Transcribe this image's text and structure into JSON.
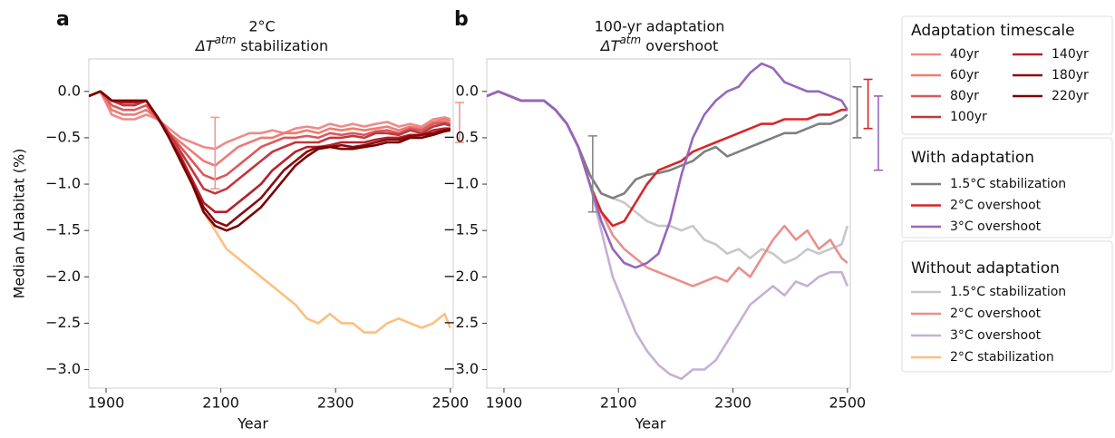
{
  "chart_data": [
    {
      "type": "line",
      "panel_label": "a",
      "title": "2°C",
      "subtitle": {
        "symbol": "ΔT",
        "superscript": "atm",
        "text": " stabilization"
      },
      "ylabel": "Median ΔHabitat (%)",
      "xlabel": "Year",
      "xlim": [
        1870,
        2505
      ],
      "ylim": [
        -3.2,
        0.35
      ],
      "xticks": [
        1900,
        2100,
        2300,
        2500
      ],
      "yticks": [
        {
          "value": 0,
          "label": "0.0"
        },
        {
          "value": -0.5,
          "label": "−0.5"
        },
        {
          "value": -1,
          "label": "−1.0"
        },
        {
          "value": -1.5,
          "label": "−1.5"
        },
        {
          "value": -2,
          "label": "−2.0"
        },
        {
          "value": -2.5,
          "label": "−2.5"
        },
        {
          "value": -3,
          "label": "−3.0"
        }
      ],
      "x": [
        1870,
        1890,
        1910,
        1930,
        1950,
        1970,
        1990,
        2010,
        2030,
        2050,
        2070,
        2090,
        2110,
        2130,
        2150,
        2170,
        2190,
        2210,
        2230,
        2250,
        2270,
        2290,
        2310,
        2330,
        2350,
        2370,
        2390,
        2410,
        2430,
        2450,
        2470,
        2490,
        2500
      ],
      "series_groups": [
        {
          "name": "Adaptation timescale",
          "series": [
            {
              "name": "40yr",
              "color": "#ef8a88",
              "values": [
                -0.05,
                0.0,
                -0.25,
                -0.3,
                -0.3,
                -0.25,
                -0.3,
                -0.4,
                -0.5,
                -0.55,
                -0.6,
                -0.62,
                -0.55,
                -0.5,
                -0.45,
                -0.45,
                -0.42,
                -0.45,
                -0.4,
                -0.38,
                -0.4,
                -0.35,
                -0.38,
                -0.35,
                -0.38,
                -0.35,
                -0.33,
                -0.38,
                -0.35,
                -0.38,
                -0.3,
                -0.28,
                -0.3
              ]
            },
            {
              "name": "60yr",
              "color": "#ee7b72",
              "values": [
                -0.05,
                0.0,
                -0.2,
                -0.25,
                -0.25,
                -0.2,
                -0.3,
                -0.45,
                -0.55,
                -0.65,
                -0.75,
                -0.8,
                -0.7,
                -0.6,
                -0.55,
                -0.5,
                -0.5,
                -0.45,
                -0.45,
                -0.42,
                -0.45,
                -0.4,
                -0.42,
                -0.4,
                -0.42,
                -0.4,
                -0.38,
                -0.42,
                -0.38,
                -0.4,
                -0.33,
                -0.3,
                -0.32
              ]
            },
            {
              "name": "80yr",
              "color": "#d9595e",
              "values": [
                -0.05,
                0.0,
                -0.15,
                -0.2,
                -0.2,
                -0.15,
                -0.3,
                -0.45,
                -0.6,
                -0.75,
                -0.9,
                -0.95,
                -0.9,
                -0.8,
                -0.7,
                -0.6,
                -0.55,
                -0.5,
                -0.5,
                -0.48,
                -0.5,
                -0.45,
                -0.47,
                -0.45,
                -0.47,
                -0.43,
                -0.42,
                -0.45,
                -0.4,
                -0.42,
                -0.35,
                -0.33,
                -0.35
              ]
            },
            {
              "name": "100yr",
              "color": "#c1373c",
              "values": [
                -0.05,
                0.0,
                -0.1,
                -0.15,
                -0.15,
                -0.1,
                -0.28,
                -0.45,
                -0.65,
                -0.85,
                -1.05,
                -1.1,
                -1.05,
                -0.95,
                -0.85,
                -0.75,
                -0.65,
                -0.6,
                -0.55,
                -0.55,
                -0.55,
                -0.5,
                -0.5,
                -0.48,
                -0.5,
                -0.45,
                -0.45,
                -0.47,
                -0.42,
                -0.45,
                -0.38,
                -0.35,
                -0.37
              ]
            },
            {
              "name": "140yr",
              "color": "#b4212a",
              "values": [
                -0.05,
                0.0,
                -0.1,
                -0.12,
                -0.12,
                -0.1,
                -0.28,
                -0.5,
                -0.7,
                -0.95,
                -1.2,
                -1.3,
                -1.3,
                -1.2,
                -1.1,
                -1.0,
                -0.85,
                -0.75,
                -0.65,
                -0.6,
                -0.6,
                -0.58,
                -0.55,
                -0.55,
                -0.55,
                -0.52,
                -0.5,
                -0.5,
                -0.47,
                -0.47,
                -0.42,
                -0.4,
                -0.4
              ]
            },
            {
              "name": "180yr",
              "color": "#8b0a0e",
              "values": [
                -0.05,
                0.0,
                -0.1,
                -0.1,
                -0.1,
                -0.1,
                -0.28,
                -0.5,
                -0.75,
                -1.0,
                -1.25,
                -1.4,
                -1.45,
                -1.35,
                -1.25,
                -1.15,
                -1.0,
                -0.85,
                -0.75,
                -0.65,
                -0.6,
                -0.6,
                -0.58,
                -0.6,
                -0.58,
                -0.55,
                -0.52,
                -0.52,
                -0.48,
                -0.47,
                -0.45,
                -0.42,
                -0.4
              ]
            },
            {
              "name": "220yr",
              "color": "#7a0000",
              "values": [
                -0.05,
                0.0,
                -0.1,
                -0.1,
                -0.1,
                -0.1,
                -0.28,
                -0.5,
                -0.75,
                -1.0,
                -1.3,
                -1.45,
                -1.5,
                -1.45,
                -1.35,
                -1.25,
                -1.1,
                -0.95,
                -0.8,
                -0.7,
                -0.62,
                -0.6,
                -0.62,
                -0.62,
                -0.6,
                -0.58,
                -0.55,
                -0.55,
                -0.5,
                -0.5,
                -0.47,
                -0.43,
                -0.42
              ]
            }
          ]
        },
        {
          "series": [
            {
              "name": "2°C stabilization",
              "color": "#fdbf80",
              "values": [
                -0.05,
                0.0,
                -0.1,
                -0.1,
                -0.1,
                -0.1,
                -0.28,
                -0.5,
                -0.75,
                -1.0,
                -1.3,
                -1.5,
                -1.7,
                -1.8,
                -1.9,
                -2.0,
                -2.1,
                -2.2,
                -2.3,
                -2.45,
                -2.5,
                -2.4,
                -2.5,
                -2.5,
                -2.6,
                -2.6,
                -2.5,
                -2.45,
                -2.5,
                -2.55,
                -2.5,
                -2.4,
                -2.55
              ]
            }
          ]
        }
      ],
      "range_bars": [
        {
          "x": 2090,
          "low": -1.05,
          "high": -0.28,
          "color": "#ef9a95"
        },
        {
          "x": 2516,
          "low": -0.55,
          "high": -0.12,
          "color": "#ef9a95"
        }
      ]
    },
    {
      "type": "line",
      "panel_label": "b",
      "title": "100-yr adaptation",
      "subtitle": {
        "symbol": "ΔT",
        "superscript": "atm",
        "text": " overshoot"
      },
      "xlabel": "Year",
      "xlim": [
        1870,
        2505
      ],
      "ylim": [
        -3.2,
        0.35
      ],
      "xticks": [
        1900,
        2100,
        2300,
        2500
      ],
      "yticks": [
        {
          "value": 0,
          "label": "0.0"
        },
        {
          "value": -0.5,
          "label": "−0.5"
        },
        {
          "value": -1,
          "label": "−1.0"
        },
        {
          "value": -1.5,
          "label": "−1.5"
        },
        {
          "value": -2,
          "label": "−2.0"
        },
        {
          "value": -2.5,
          "label": "−2.5"
        },
        {
          "value": -3,
          "label": "−3.0"
        }
      ],
      "x": [
        1870,
        1890,
        1910,
        1930,
        1950,
        1970,
        1990,
        2010,
        2030,
        2050,
        2070,
        2090,
        2110,
        2130,
        2150,
        2170,
        2190,
        2210,
        2230,
        2250,
        2270,
        2290,
        2310,
        2330,
        2350,
        2370,
        2390,
        2410,
        2430,
        2450,
        2470,
        2490,
        2500
      ],
      "series_groups": [
        {
          "name": "With adaptation",
          "series": [
            {
              "name": "1.5°C stabilization",
              "color": "#7f7f7f",
              "values": [
                -0.05,
                0.0,
                -0.05,
                -0.1,
                -0.1,
                -0.1,
                -0.2,
                -0.35,
                -0.6,
                -0.9,
                -1.1,
                -1.15,
                -1.1,
                -0.95,
                -0.9,
                -0.88,
                -0.85,
                -0.8,
                -0.75,
                -0.65,
                -0.6,
                -0.7,
                -0.65,
                -0.6,
                -0.55,
                -0.5,
                -0.45,
                -0.45,
                -0.4,
                -0.35,
                -0.35,
                -0.3,
                -0.25
              ]
            },
            {
              "name": "2°C overshoot",
              "color": "#d62728",
              "values": [
                -0.05,
                0.0,
                -0.05,
                -0.1,
                -0.1,
                -0.1,
                -0.2,
                -0.35,
                -0.6,
                -1.0,
                -1.3,
                -1.45,
                -1.4,
                -1.2,
                -1.0,
                -0.85,
                -0.8,
                -0.75,
                -0.65,
                -0.6,
                -0.55,
                -0.5,
                -0.45,
                -0.4,
                -0.35,
                -0.35,
                -0.3,
                -0.3,
                -0.3,
                -0.25,
                -0.25,
                -0.2,
                -0.2
              ]
            },
            {
              "name": "3°C overshoot",
              "color": "#9467bd",
              "values": [
                -0.05,
                0.0,
                -0.05,
                -0.1,
                -0.1,
                -0.1,
                -0.2,
                -0.35,
                -0.6,
                -1.0,
                -1.4,
                -1.7,
                -1.85,
                -1.9,
                -1.85,
                -1.75,
                -1.4,
                -0.9,
                -0.5,
                -0.25,
                -0.1,
                0.0,
                0.05,
                0.2,
                0.3,
                0.25,
                0.1,
                0.05,
                0.0,
                0.0,
                -0.05,
                -0.1,
                -0.2
              ]
            }
          ]
        },
        {
          "name": "Without adaptation",
          "series": [
            {
              "name": "1.5°C stabilization",
              "color": "#c7c7c7",
              "values": [
                -0.05,
                0.0,
                -0.05,
                -0.1,
                -0.1,
                -0.1,
                -0.2,
                -0.35,
                -0.6,
                -0.9,
                -1.1,
                -1.15,
                -1.2,
                -1.3,
                -1.4,
                -1.45,
                -1.45,
                -1.5,
                -1.45,
                -1.6,
                -1.65,
                -1.75,
                -1.7,
                -1.8,
                -1.7,
                -1.75,
                -1.85,
                -1.8,
                -1.7,
                -1.75,
                -1.7,
                -1.65,
                -1.45
              ]
            },
            {
              "name": "2°C overshoot",
              "color": "#e8908c",
              "values": [
                -0.05,
                0.0,
                -0.05,
                -0.1,
                -0.1,
                -0.1,
                -0.2,
                -0.35,
                -0.6,
                -1.0,
                -1.3,
                -1.55,
                -1.7,
                -1.8,
                -1.9,
                -1.95,
                -2.0,
                -2.05,
                -2.1,
                -2.05,
                -2.0,
                -2.05,
                -1.9,
                -2.0,
                -1.8,
                -1.6,
                -1.45,
                -1.6,
                -1.5,
                -1.7,
                -1.6,
                -1.8,
                -1.85
              ]
            },
            {
              "name": "3°C overshoot",
              "color": "#c5b0d5",
              "values": [
                -0.05,
                0.0,
                -0.05,
                -0.1,
                -0.1,
                -0.1,
                -0.2,
                -0.35,
                -0.6,
                -1.0,
                -1.5,
                -2.0,
                -2.3,
                -2.6,
                -2.8,
                -2.95,
                -3.05,
                -3.1,
                -3.0,
                -3.0,
                -2.9,
                -2.7,
                -2.5,
                -2.3,
                -2.2,
                -2.1,
                -2.2,
                -2.05,
                -2.1,
                -2.0,
                -1.95,
                -1.95,
                -2.1
              ]
            }
          ]
        }
      ],
      "range_bars": [
        {
          "x": 2055,
          "low": -1.3,
          "high": -0.48,
          "color": "#888888"
        },
        {
          "x": 2517,
          "low": -0.5,
          "high": 0.05,
          "color": "#777777"
        },
        {
          "x": 2536,
          "low": -0.4,
          "high": 0.13,
          "color": "#d62728"
        },
        {
          "x": 2554,
          "low": -0.85,
          "high": -0.05,
          "color": "#9467bd"
        }
      ]
    }
  ]
}
